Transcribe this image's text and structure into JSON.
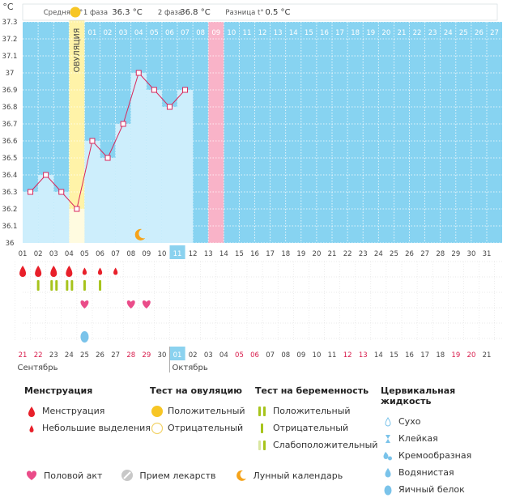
{
  "chart_data": {
    "type": "line",
    "title": "",
    "ylabel": "°C",
    "ylim": [
      36.0,
      37.3
    ],
    "yticks": [
      "36",
      "36.1",
      "36.2",
      "36.3",
      "36.4",
      "36.5",
      "36.6",
      "36.7",
      "36.8",
      "36.9",
      "37",
      "37.1",
      "37.2",
      "37.3"
    ],
    "cycle_days": [
      "01",
      "02",
      "03",
      "04",
      "05",
      "06",
      "07",
      "08",
      "09",
      "10",
      "11",
      "12",
      "13",
      "14",
      "15",
      "16",
      "17",
      "18",
      "19",
      "20",
      "21",
      "22",
      "23",
      "24",
      "25",
      "26",
      "27",
      "28",
      "29",
      "30",
      "31"
    ],
    "temperatures": [
      36.3,
      36.4,
      36.3,
      36.2,
      36.6,
      36.5,
      36.7,
      37.0,
      36.9,
      36.8,
      36.9
    ],
    "phase_days": [
      "01",
      "02",
      "03",
      "04",
      "05",
      "06",
      "07",
      "08",
      "09",
      "10",
      "11",
      "12",
      "13",
      "14",
      "15",
      "16",
      "17",
      "18",
      "19",
      "20",
      "21",
      "22",
      "23",
      "24",
      "25",
      "26",
      "27"
    ],
    "ovulation_label": "ОВУЛЯЦИЯ",
    "ovulation_day_index": 3,
    "highlight_day": "13",
    "today_day": "11",
    "calendar_dates": [
      "21",
      "22",
      "23",
      "24",
      "25",
      "26",
      "27",
      "28",
      "29",
      "30",
      "01",
      "02",
      "03",
      "04",
      "05",
      "06",
      "07",
      "08",
      "09",
      "10",
      "11",
      "12",
      "13",
      "14",
      "15",
      "16",
      "17",
      "18",
      "19",
      "20",
      "21"
    ],
    "weekend_indices": [
      0,
      1,
      7,
      8,
      14,
      15,
      21,
      22,
      28,
      29
    ],
    "today_calendar_index": 10,
    "months": [
      {
        "label": "Сентябрь",
        "start_index": 0
      },
      {
        "label": "Октябрь",
        "start_index": 10
      }
    ],
    "lunar_day_index": 7,
    "markers": {
      "menstruation": [
        "big",
        "big",
        "big",
        "big",
        "small",
        "small",
        "small"
      ],
      "pregnancy_tests": [
        1,
        2,
        2,
        1,
        1
      ],
      "intercourse_days": [
        4,
        7,
        8
      ],
      "cervical_day": 4
    }
  },
  "header": {
    "avg_label": "Средняя t°",
    "phase1_label": "1 фаза",
    "phase1_value": "36.3 °C",
    "phase2_label": "2 фаза",
    "phase2_value": "36.8 °C",
    "diff_label": "Разница t°",
    "diff_value": "0.5 °C"
  },
  "legend": {
    "menstruation": {
      "title": "Менструация",
      "items": [
        "Менструация",
        "Небольшие выделения"
      ]
    },
    "ovulation_test": {
      "title": "Тест на овуляцию",
      "items": [
        "Положительный",
        "Отрицательный"
      ]
    },
    "pregnancy_test": {
      "title": "Тест на беременность",
      "items": [
        "Положительный",
        "Отрицательный",
        "Слабоположительный"
      ]
    },
    "cervical": {
      "title": "Цервикальная жидкость",
      "items": [
        "Сухо",
        "Клейкая",
        "Кремообразная",
        "Водянистая",
        "Яичный белок"
      ]
    }
  },
  "bottom_legend": [
    "Половой акт",
    "Прием лекарств",
    "Лунный календарь"
  ],
  "colors": {
    "bg_blue": "#87d3f1",
    "fill_light": "#cdeefc",
    "ovulation": "#fff3a8",
    "highlight": "#f9b3c8",
    "today": "#8bd2ef",
    "line": "#d9265b",
    "blood": "#e8202a",
    "test_green": "#a7c41c",
    "heart": "#ea4c89",
    "moon": "#f5a31a",
    "weekend": "#d81b4b",
    "drop_blue": "#7ac3ea",
    "egg_yellow": "#f7c625"
  }
}
